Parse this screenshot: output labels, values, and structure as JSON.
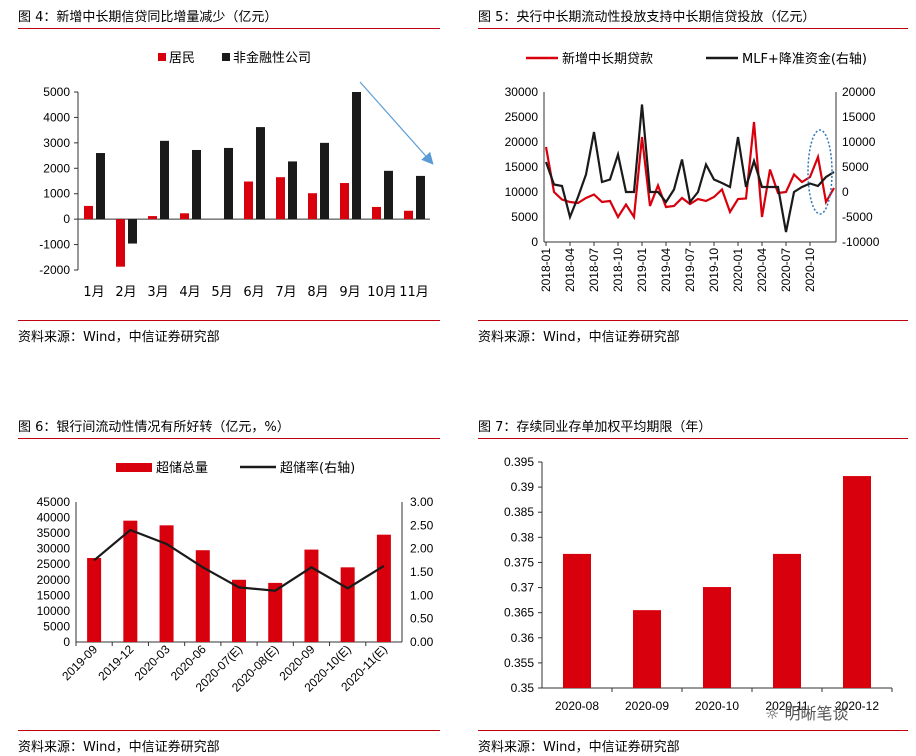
{
  "colors": {
    "red": "#d9000d",
    "black": "#1a1a1a",
    "rule": "#c00010",
    "arrow": "#5b9bd5",
    "ellipse": "#2e75b6"
  },
  "chart_data": [
    {
      "id": "fig4",
      "type": "bar",
      "title": "图 4：新增中长期信贷同比增量减少（亿元）",
      "source": "资料来源：Wind，中信证券研究部",
      "categories": [
        "1月",
        "2月",
        "3月",
        "4月",
        "5月",
        "6月",
        "7月",
        "8月",
        "9月",
        "10月",
        "11月"
      ],
      "series": [
        {
          "name": "居民",
          "color": "#d9000d",
          "values": [
            520,
            -1870,
            120,
            230,
            0,
            1480,
            1650,
            1020,
            1420,
            480,
            330
          ]
        },
        {
          "name": "非金融性公司",
          "color": "#1a1a1a",
          "values": [
            2600,
            -960,
            3080,
            2720,
            2800,
            3620,
            2270,
            3000,
            5000,
            1900,
            1700
          ]
        }
      ],
      "ylim": [
        -2000,
        5000
      ],
      "yticks": [
        5000,
        4000,
        3000,
        2000,
        1000,
        0,
        -1000,
        -2000
      ],
      "annotation": "downward-arrow"
    },
    {
      "id": "fig5",
      "type": "line",
      "title": "图 5：央行中长期流动性投放支持中长期信贷投放（亿元）",
      "source": "资料来源：Wind，中信证券研究部",
      "xticks": [
        "2018-01",
        "2018-04",
        "2018-07",
        "2018-10",
        "2019-01",
        "2019-04",
        "2019-07",
        "2019-10",
        "2020-01",
        "2020-04",
        "2020-07",
        "2020-10"
      ],
      "series": [
        {
          "name": "新增中长期贷款",
          "axis": "left",
          "color": "#d9000d",
          "values": [
            19000,
            10000,
            8500,
            8000,
            7800,
            8800,
            9500,
            8000,
            8200,
            5000,
            7500,
            5000,
            21000,
            7200,
            11300,
            7000,
            7200,
            8800,
            7600,
            8600,
            8200,
            9000,
            10500,
            6000,
            8600,
            8700,
            24000,
            5000,
            14500,
            9800,
            10000,
            13500,
            12000,
            13000,
            17000,
            8000,
            10800
          ]
        },
        {
          "name": "MLF+降准资金(右轴)",
          "axis": "right",
          "color": "#1a1a1a",
          "values": [
            6000,
            1500,
            1200,
            -5000,
            -1000,
            3500,
            12000,
            2000,
            2500,
            7500,
            0,
            0,
            17500,
            0,
            0,
            -2000,
            500,
            6500,
            -2000,
            0,
            5500,
            2500,
            1800,
            1000,
            11000,
            1000,
            6200,
            1000,
            1000,
            1000,
            -8000,
            0,
            1000,
            1700,
            1200,
            3000,
            4000
          ]
        }
      ],
      "ylim_left": [
        0,
        30000
      ],
      "yticks_left": [
        30000,
        25000,
        20000,
        15000,
        10000,
        5000,
        0
      ],
      "ylim_right": [
        -10000,
        20000
      ],
      "yticks_right": [
        20000,
        15000,
        10000,
        5000,
        0,
        -5000,
        -10000
      ],
      "annotation": "dotted-ellipse-latest"
    },
    {
      "id": "fig6",
      "type": "bar",
      "title": "图 6：银行间流动性情况有所好转（亿元，%）",
      "source": "资料来源：Wind，中信证券研究部",
      "categories": [
        "2019-09",
        "2019-12",
        "2020-03",
        "2020-06",
        "2020-07(E)",
        "2020-08(E)",
        "2020-09",
        "2020-10(E)",
        "2020-11(E)"
      ],
      "series": [
        {
          "name": "超储总量",
          "type": "bar",
          "axis": "left",
          "color": "#d9000d",
          "values": [
            27000,
            39000,
            37500,
            29500,
            20000,
            19000,
            29700,
            24000,
            34500
          ]
        },
        {
          "name": "超储率(右轴)",
          "type": "line",
          "axis": "right",
          "color": "#1a1a1a",
          "values": [
            1.75,
            2.4,
            2.1,
            1.6,
            1.17,
            1.1,
            1.6,
            1.15,
            1.63
          ]
        }
      ],
      "ylim_left": [
        0,
        45000
      ],
      "yticks_left": [
        45000,
        40000,
        35000,
        30000,
        25000,
        20000,
        15000,
        10000,
        5000,
        0
      ],
      "ylim_right": [
        0,
        3
      ],
      "yticks_right": [
        "3.00",
        "2.50",
        "2.00",
        "1.50",
        "1.00",
        "0.50",
        "0.00"
      ]
    },
    {
      "id": "fig7",
      "type": "bar",
      "title": "图 7：存续同业存单加权平均期限（年）",
      "source": "资料来源：Wind，中信证券研究部",
      "categories": [
        "2020-08",
        "2020-09",
        "2020-10",
        "2020-11",
        "2020-12"
      ],
      "series": [
        {
          "name": "加权平均期限",
          "color": "#d9000d",
          "values": [
            0.3767,
            0.3655,
            0.3701,
            0.3767,
            0.3922
          ]
        }
      ],
      "ylim": [
        0.35,
        0.395
      ],
      "yticks": [
        "0.395",
        "0.39",
        "0.385",
        "0.38",
        "0.375",
        "0.37",
        "0.365",
        "0.36",
        "0.355",
        "0.35"
      ]
    }
  ],
  "watermark": "明晰笔谈"
}
